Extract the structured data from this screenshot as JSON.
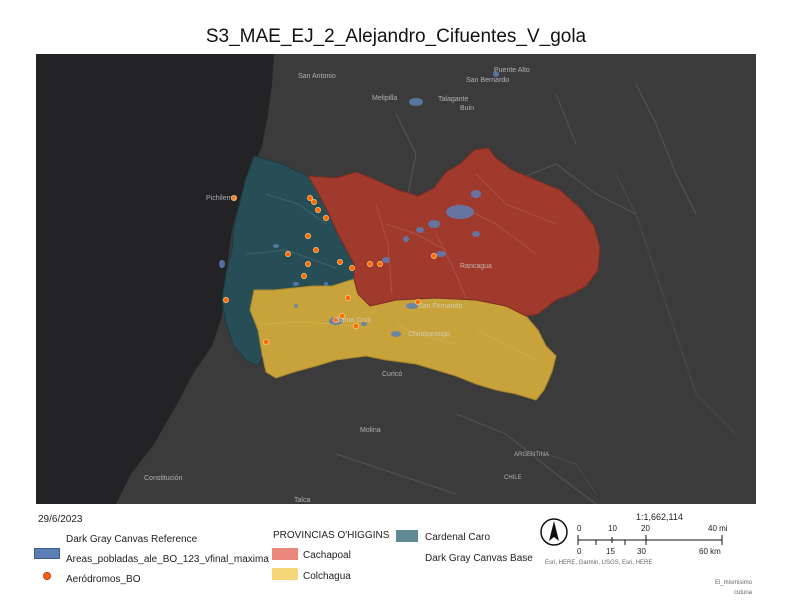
{
  "title": "S3_MAE_EJ_2_Alejandro_Cifuentes_V_gola",
  "map": {
    "place_labels": [
      {
        "text": "San Antonio"
      },
      {
        "text": "Melipilla"
      },
      {
        "text": "Talagante"
      },
      {
        "text": "San Bernardo"
      },
      {
        "text": "Puente Alto"
      },
      {
        "text": "Buin"
      },
      {
        "text": "Rancagua"
      },
      {
        "text": "Santa Cruz"
      },
      {
        "text": "San Fernando"
      },
      {
        "text": "Chimbarongo"
      },
      {
        "text": "Curicó"
      },
      {
        "text": "Talca"
      },
      {
        "text": "Molina"
      },
      {
        "text": "Constitución"
      },
      {
        "text": "Pichilemu"
      },
      {
        "text": "ARGENTINA"
      },
      {
        "text": "CHILE"
      }
    ],
    "colors": {
      "ocean": "#232326",
      "land": "#3b3b3b",
      "cardenal_caro": "#274e57",
      "cachapoal": "#a03a2c",
      "colchagua": "#c8a23a",
      "populated": "#5b7fb5",
      "aerodrome": "#ff6a00"
    },
    "aerodromes_count_visible": 22
  },
  "date": "29/6/2023",
  "legend": {
    "items": [
      {
        "label": "Dark Gray Canvas Reference"
      },
      {
        "label": "Areas_pobladas_ale_BO_123_vfinal_maxima"
      },
      {
        "label": "Aeródromos_BO"
      }
    ],
    "provinces_title": "PROVINCIAS O'HIGGINS",
    "provinces": [
      {
        "label": "Cachapoal",
        "color": "#e8877a"
      },
      {
        "label": "Colchagua",
        "color": "#f5d77a"
      },
      {
        "label": "Cardenal Caro",
        "color": "#5f8a93"
      }
    ],
    "base": "Dark Gray Canvas Base"
  },
  "scale": {
    "ratio": "1:1,662,114",
    "miles": [
      "0",
      "10",
      "20",
      "40 mi"
    ],
    "km": [
      "0",
      "15",
      "30",
      "60 km"
    ],
    "credits": "Esri, HERE, Garmin, USGS, Esri, HERE"
  },
  "footer": {
    "line1": "El_mismisimo",
    "line2": "cutuna"
  }
}
